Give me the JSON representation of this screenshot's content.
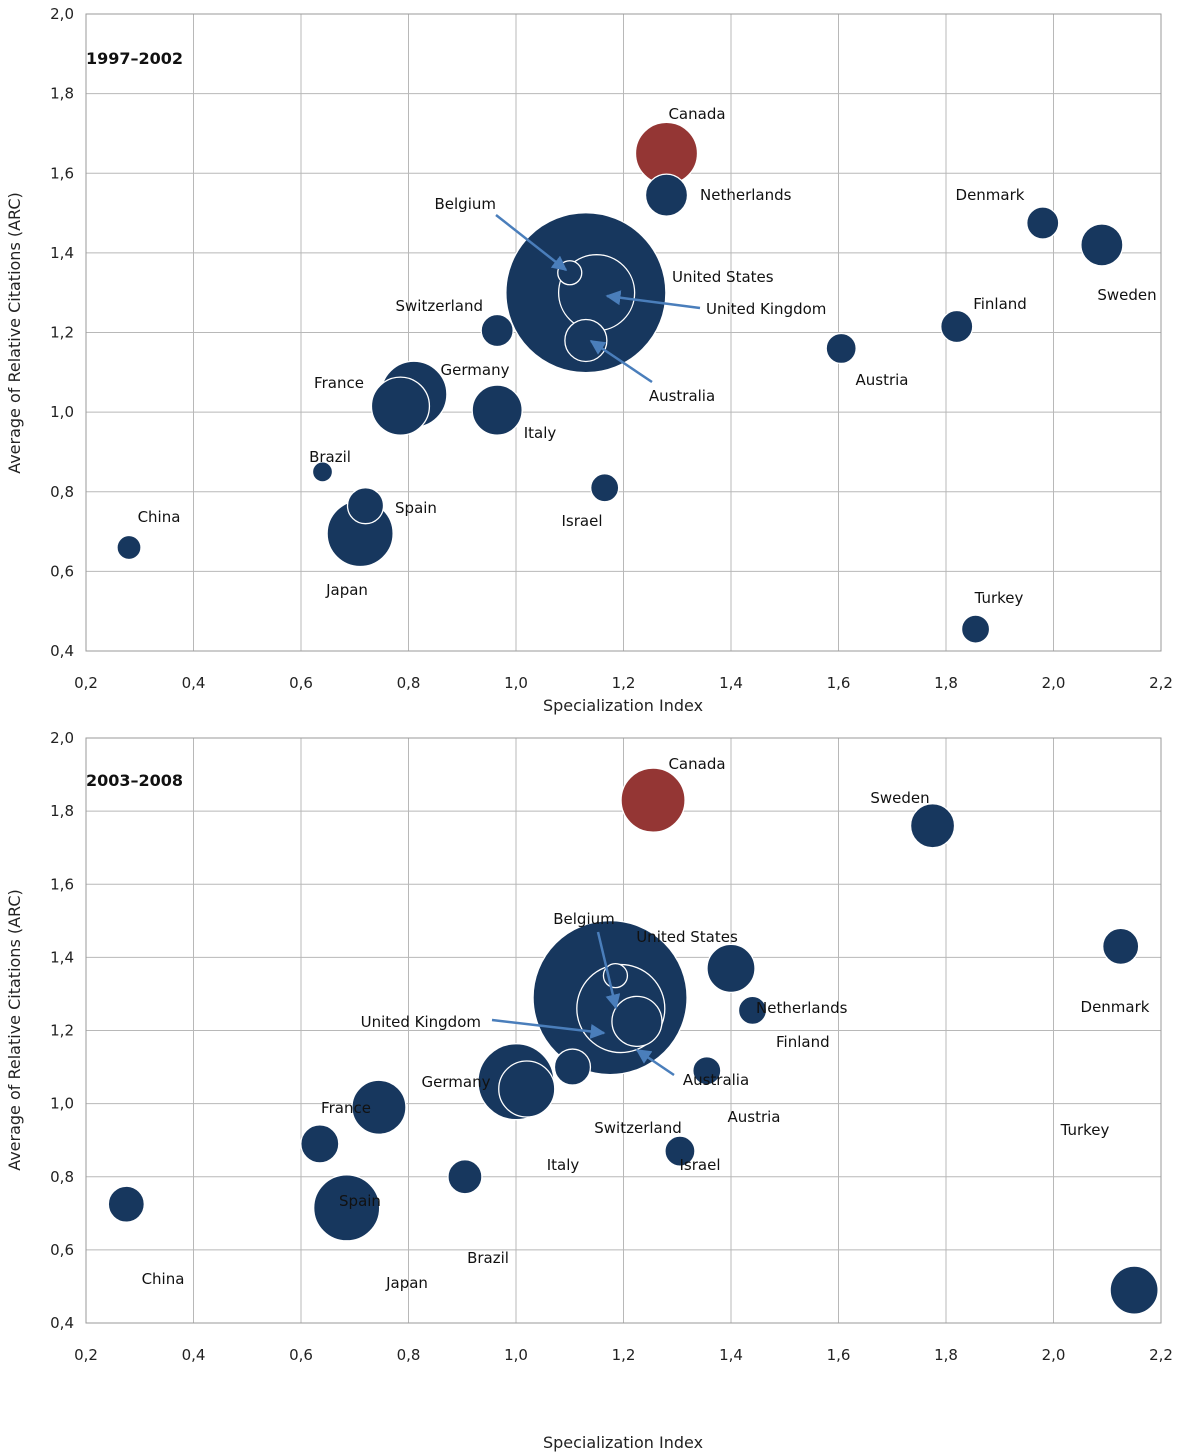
{
  "colors": {
    "bubble": "#17375e",
    "highlight": "#943634",
    "bubble_outline": "#ffffff",
    "arrow": "#4a7ebb",
    "grid": "#b8b8b8"
  },
  "chart_data": [
    {
      "type": "scatter",
      "title": "1997-2002",
      "xlabel": "Specialization Index",
      "ylabel": "Average of Relative Citations (ARC)",
      "xlim": [
        0.2,
        2.2
      ],
      "ylim": [
        0.4,
        2.0
      ],
      "xticks": [
        "0,2",
        "0,4",
        "0,6",
        "0,8",
        "1,0",
        "1,2",
        "1,4",
        "1,6",
        "1,8",
        "2,0",
        "2,2"
      ],
      "yticks": [
        "0,4",
        "0,6",
        "0,8",
        "1,0",
        "1,2",
        "1,4",
        "1,6",
        "1,8",
        "2,0"
      ],
      "grid": true,
      "points": [
        {
          "name": "United States",
          "x": 1.13,
          "y": 1.3,
          "size": 80
        },
        {
          "name": "Germany",
          "x": 0.81,
          "y": 1.045,
          "size": 33
        },
        {
          "name": "Japan",
          "x": 0.71,
          "y": 0.695,
          "size": 33
        },
        {
          "name": "France",
          "x": 0.785,
          "y": 1.015,
          "size": 29
        },
        {
          "name": "United Kingdom",
          "x": 1.15,
          "y": 1.3,
          "size": 38
        },
        {
          "name": "Canada",
          "x": 1.28,
          "y": 1.65,
          "size": 31
        },
        {
          "name": "Italy",
          "x": 0.965,
          "y": 1.005,
          "size": 25
        },
        {
          "name": "Sweden",
          "x": 2.09,
          "y": 1.42,
          "size": 21
        },
        {
          "name": "Netherlands",
          "x": 1.28,
          "y": 1.545,
          "size": 21
        },
        {
          "name": "Australia",
          "x": 1.13,
          "y": 1.18,
          "size": 21
        },
        {
          "name": "Spain",
          "x": 0.72,
          "y": 0.765,
          "size": 18
        },
        {
          "name": "Denmark",
          "x": 1.98,
          "y": 1.475,
          "size": 16
        },
        {
          "name": "Switzerland",
          "x": 0.965,
          "y": 1.205,
          "size": 16
        },
        {
          "name": "Finland",
          "x": 1.82,
          "y": 1.215,
          "size": 16
        },
        {
          "name": "Austria",
          "x": 1.605,
          "y": 1.16,
          "size": 15
        },
        {
          "name": "Israel",
          "x": 1.165,
          "y": 0.81,
          "size": 14
        },
        {
          "name": "Turkey",
          "x": 1.855,
          "y": 0.455,
          "size": 14
        },
        {
          "name": "China",
          "x": 0.28,
          "y": 0.66,
          "size": 12
        },
        {
          "name": "Belgium",
          "x": 1.1,
          "y": 1.35,
          "size": 12
        },
        {
          "name": "Brazil",
          "x": 0.64,
          "y": 0.85,
          "size": 10
        }
      ]
    },
    {
      "type": "scatter",
      "title": "2003-2008",
      "xlabel": "Specialization Index",
      "ylabel": "Average of Relative Citations (ARC)",
      "xlim": [
        0.2,
        2.2
      ],
      "ylim": [
        0.4,
        2.0
      ],
      "xticks": [
        "0,2",
        "0,4",
        "0,6",
        "0,8",
        "1,0",
        "1,2",
        "1,4",
        "1,6",
        "1,8",
        "2,0",
        "2,2"
      ],
      "yticks": [
        "0,4",
        "0,6",
        "0,8",
        "1,0",
        "1,2",
        "1,4",
        "1,6",
        "1,8",
        "2,0"
      ],
      "grid": true,
      "points": [
        {
          "name": "United States",
          "x": 1.175,
          "y": 1.29,
          "size": 77
        },
        {
          "name": "Germany",
          "x": 1.0,
          "y": 1.06,
          "size": 38
        },
        {
          "name": "Japan",
          "x": 0.685,
          "y": 0.715,
          "size": 33
        },
        {
          "name": "United Kingdom",
          "x": 1.195,
          "y": 1.26,
          "size": 44
        },
        {
          "name": "France",
          "x": 0.745,
          "y": 0.99,
          "size": 27
        },
        {
          "name": "Canada",
          "x": 1.255,
          "y": 1.83,
          "size": 32
        },
        {
          "name": "Italy",
          "x": 1.02,
          "y": 1.04,
          "size": 28
        },
        {
          "name": "Australia",
          "x": 1.225,
          "y": 1.225,
          "size": 25
        },
        {
          "name": "Netherlands",
          "x": 1.4,
          "y": 1.37,
          "size": 24
        },
        {
          "name": "Sweden",
          "x": 1.775,
          "y": 1.76,
          "size": 22
        },
        {
          "name": "Turkey",
          "x": 2.15,
          "y": 0.49,
          "size": 24
        },
        {
          "name": "Spain",
          "x": 0.635,
          "y": 0.89,
          "size": 19
        },
        {
          "name": "Switzerland",
          "x": 1.105,
          "y": 1.1,
          "size": 18
        },
        {
          "name": "China",
          "x": 0.275,
          "y": 0.725,
          "size": 18
        },
        {
          "name": "Denmark",
          "x": 2.125,
          "y": 1.43,
          "size": 18
        },
        {
          "name": "Brazil",
          "x": 0.905,
          "y": 0.8,
          "size": 17
        },
        {
          "name": "Israel",
          "x": 1.305,
          "y": 0.87,
          "size": 15
        },
        {
          "name": "Austria",
          "x": 1.355,
          "y": 1.09,
          "size": 14
        },
        {
          "name": "Finland",
          "x": 1.44,
          "y": 1.255,
          "size": 14
        },
        {
          "name": "Belgium",
          "x": 1.185,
          "y": 1.35,
          "size": 12
        }
      ]
    }
  ],
  "panels": [
    {
      "period": "1997–2002",
      "xlabel": "Specialization Index",
      "ylabel": "Average of Relative Citations (ARC)",
      "labels": [
        {
          "id": "canada",
          "text": "Canada"
        },
        {
          "id": "netherlands",
          "text": "Netherlands"
        },
        {
          "id": "belgium",
          "text": "Belgium"
        },
        {
          "id": "united-states",
          "text": "United States"
        },
        {
          "id": "united-kingdom",
          "text": "United Kingdom"
        },
        {
          "id": "switzerland",
          "text": "Switzerland"
        },
        {
          "id": "australia",
          "text": "Australia"
        },
        {
          "id": "denmark",
          "text": "Denmark"
        },
        {
          "id": "sweden",
          "text": "Sweden"
        },
        {
          "id": "finland",
          "text": "Finland"
        },
        {
          "id": "austria",
          "text": "Austria"
        },
        {
          "id": "france",
          "text": "France"
        },
        {
          "id": "germany",
          "text": "Germany"
        },
        {
          "id": "italy",
          "text": "Italy"
        },
        {
          "id": "brazil",
          "text": "Brazil"
        },
        {
          "id": "spain",
          "text": "Spain"
        },
        {
          "id": "israel",
          "text": "Israel"
        },
        {
          "id": "china",
          "text": "China"
        },
        {
          "id": "japan",
          "text": "Japan"
        },
        {
          "id": "turkey",
          "text": "Turkey"
        }
      ]
    },
    {
      "period": "2003–2008",
      "xlabel": "Specialization Index",
      "ylabel": "Average of Relative Citations (ARC)",
      "labels": [
        {
          "id": "canada",
          "text": "Canada"
        },
        {
          "id": "sweden",
          "text": "Sweden"
        },
        {
          "id": "belgium",
          "text": "Belgium"
        },
        {
          "id": "united-states",
          "text": "United States"
        },
        {
          "id": "netherlands",
          "text": "Netherlands"
        },
        {
          "id": "denmark",
          "text": "Denmark"
        },
        {
          "id": "united-kingdom",
          "text": "United Kingdom"
        },
        {
          "id": "finland",
          "text": "Finland"
        },
        {
          "id": "australia",
          "text": "Australia"
        },
        {
          "id": "germany",
          "text": "Germany"
        },
        {
          "id": "austria",
          "text": "Austria"
        },
        {
          "id": "france",
          "text": "France"
        },
        {
          "id": "switzerland",
          "text": "Switzerland"
        },
        {
          "id": "italy",
          "text": "Italy"
        },
        {
          "id": "israel",
          "text": "Israel"
        },
        {
          "id": "spain",
          "text": "Spain"
        },
        {
          "id": "brazil",
          "text": "Brazil"
        },
        {
          "id": "china",
          "text": "China"
        },
        {
          "id": "japan",
          "text": "Japan"
        },
        {
          "id": "turkey",
          "text": "Turkey"
        }
      ]
    }
  ]
}
